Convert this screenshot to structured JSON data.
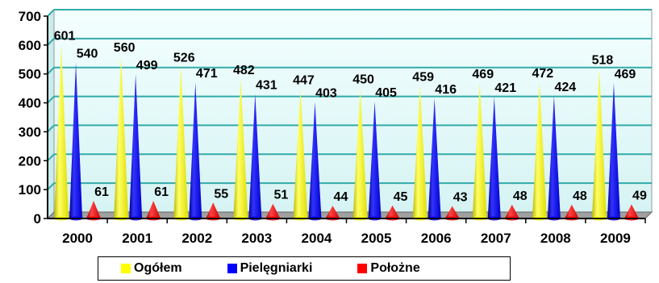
{
  "chart_data": {
    "type": "bar",
    "style": "cone",
    "categories": [
      "2000",
      "2001",
      "2002",
      "2003",
      "2004",
      "2005",
      "2006",
      "2007",
      "2008",
      "2009"
    ],
    "series": [
      {
        "name": "Ogółem",
        "color": "#ffff00",
        "values": [
          601,
          560,
          526,
          482,
          447,
          450,
          459,
          469,
          472,
          518
        ]
      },
      {
        "name": "Pielęgniarki",
        "color": "#0000ff",
        "values": [
          540,
          499,
          471,
          431,
          403,
          405,
          416,
          421,
          424,
          469
        ]
      },
      {
        "name": "Położne",
        "color": "#ff0000",
        "values": [
          61,
          61,
          55,
          51,
          44,
          45,
          43,
          48,
          48,
          49
        ]
      }
    ],
    "ylim": [
      0,
      700
    ],
    "yticks": [
      "0",
      "100",
      "200",
      "300",
      "400",
      "500",
      "600",
      "700"
    ],
    "grid": true,
    "plot_background": "#e6fafa",
    "gridline_color": "#33aaaa",
    "legend_position": "bottom"
  }
}
